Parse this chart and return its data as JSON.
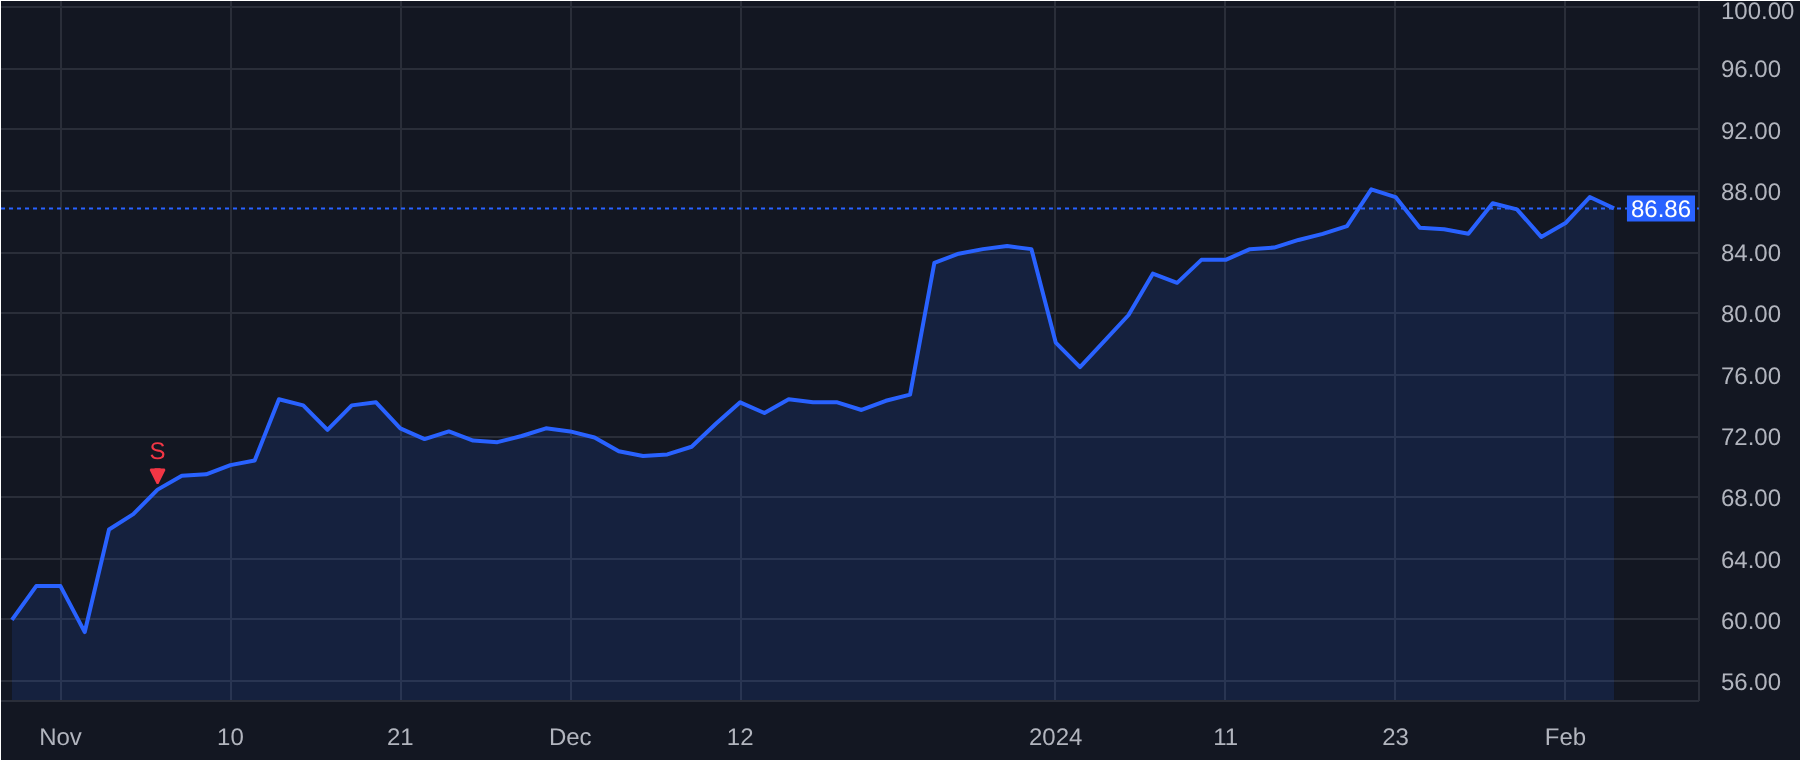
{
  "chart_data": {
    "type": "area",
    "categories": [
      null,
      null,
      "Nov",
      null,
      null,
      null,
      null,
      null,
      null,
      "10",
      null,
      null,
      null,
      null,
      null,
      null,
      "21",
      null,
      null,
      null,
      null,
      null,
      null,
      "Dec",
      null,
      null,
      null,
      null,
      null,
      null,
      "12",
      null,
      null,
      null,
      null,
      null,
      null,
      null,
      null,
      null,
      null,
      null,
      null,
      "2024",
      null,
      null,
      null,
      null,
      null,
      null,
      "11",
      null,
      null,
      null,
      null,
      null,
      null,
      "23",
      null,
      null,
      null,
      null,
      null,
      null,
      "Feb",
      null,
      null
    ],
    "series": [
      {
        "color": "#2962ff",
        "values": [
          60.0,
          62.2,
          62.2,
          59.2,
          65.9,
          66.9,
          68.5,
          69.4,
          69.5,
          70.1,
          70.4,
          74.4,
          74.0,
          72.4,
          74.0,
          74.2,
          72.5,
          71.8,
          72.3,
          71.7,
          71.6,
          72.0,
          72.5,
          72.3,
          71.9,
          71.0,
          70.7,
          70.8,
          71.3,
          72.8,
          74.2,
          73.5,
          74.4,
          74.2,
          74.2,
          73.7,
          74.3,
          74.7,
          83.3,
          83.9,
          84.2,
          84.4,
          84.2,
          78.1,
          76.5,
          78.2,
          79.9,
          82.6,
          82.0,
          83.5,
          83.5,
          84.2,
          84.3,
          84.8,
          85.2,
          85.7,
          88.1,
          87.6,
          85.6,
          85.5,
          85.2,
          87.2,
          86.8,
          85.0,
          85.9,
          87.6,
          86.86
        ]
      }
    ],
    "ylim": [
      54.7,
      100.4
    ],
    "yticks": [
      {
        "value": 56,
        "label": "56.00"
      },
      {
        "value": 60,
        "label": "60.00"
      },
      {
        "value": 64,
        "label": "64.00"
      },
      {
        "value": 68,
        "label": "68.00"
      },
      {
        "value": 72,
        "label": "72.00"
      },
      {
        "value": 76,
        "label": "76.00"
      },
      {
        "value": 80,
        "label": "80.00"
      },
      {
        "value": 84,
        "label": "84.00"
      },
      {
        "value": 88,
        "label": "88.00"
      },
      {
        "value": 92,
        "label": "92.00"
      },
      {
        "value": 96,
        "label": "96.00"
      },
      {
        "value": 100,
        "label": "100.00"
      }
    ],
    "ref_lines": [
      {
        "axis": "y",
        "value": 86.86,
        "label": "86.86",
        "color": "#2962ff",
        "line_style": "dotted"
      }
    ],
    "annotations": [
      {
        "text": "S",
        "y": 68.5
      }
    ],
    "grid": true,
    "marker": "none",
    "line_style": "solid"
  }
}
